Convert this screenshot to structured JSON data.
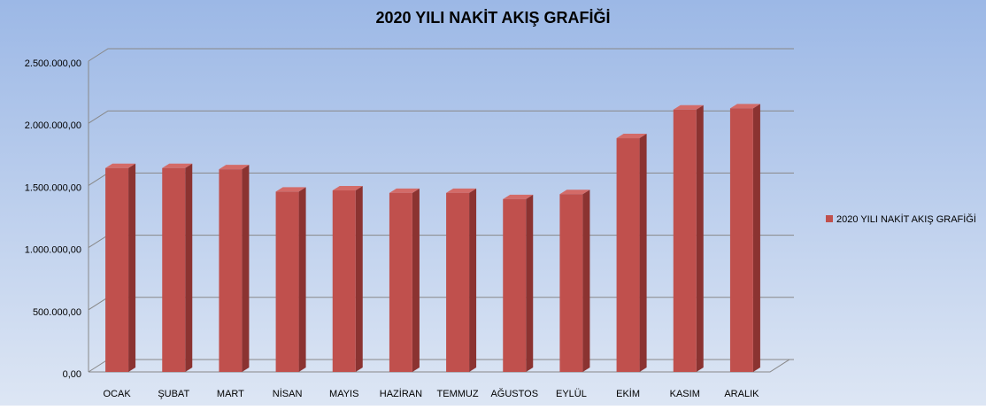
{
  "chart_data": {
    "type": "bar3d",
    "title": "2020 YILI NAKİT AKIŞ GRAFİĞİ",
    "categories": [
      "OCAK",
      "ŞUBAT",
      "MART",
      "NİSAN",
      "MAYIS",
      "HAZİRAN",
      "TEMMUZ",
      "AĞUSTOS",
      "EYLÜL",
      "EKİM",
      "KASIM",
      "ARALIK"
    ],
    "series": [
      {
        "name": "2020 YILI NAKİT AKIŞ GRAFİĞİ",
        "color": "#c0504d",
        "values": [
          1640000,
          1640000,
          1630000,
          1450000,
          1460000,
          1440000,
          1440000,
          1390000,
          1430000,
          1880000,
          2110000,
          2120000
        ]
      }
    ],
    "ylim": [
      0,
      2500000
    ],
    "yticks": [
      {
        "value": 0,
        "label": "0,00"
      },
      {
        "value": 500000,
        "label": "500.000,00"
      },
      {
        "value": 1000000,
        "label": "1.000.000,00"
      },
      {
        "value": 1500000,
        "label": "1.500.000,00"
      },
      {
        "value": 2000000,
        "label": "2.000.000,00"
      },
      {
        "value": 2500000,
        "label": "2.500.000,00"
      }
    ],
    "grid": true,
    "legend": "right"
  }
}
